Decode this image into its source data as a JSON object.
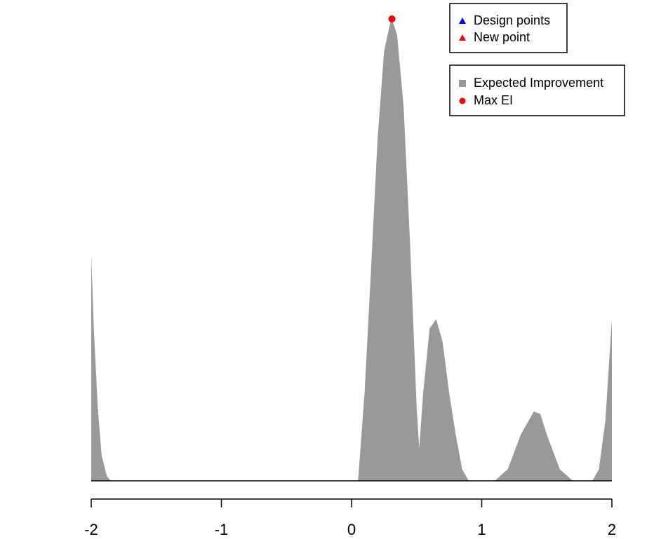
{
  "chart_data": {
    "type": "area",
    "xlim": [
      -2,
      2
    ],
    "xticks": [
      -2,
      -1,
      0,
      1,
      2
    ],
    "ylim": [
      0,
      1
    ],
    "series": [
      {
        "name": "Expected Improvement",
        "color": "#999999",
        "marker": "square",
        "x": [
          -2,
          -1.98,
          -1.95,
          -1.92,
          -1.88,
          -1.85,
          0.05,
          0.1,
          0.15,
          0.2,
          0.25,
          0.3,
          0.31,
          0.35,
          0.4,
          0.45,
          0.5,
          0.52,
          0.55,
          0.6,
          0.65,
          0.7,
          0.75,
          0.8,
          0.85,
          0.9,
          1.1,
          1.2,
          1.3,
          1.4,
          1.45,
          1.5,
          1.6,
          1.7,
          1.85,
          1.9,
          1.95,
          2
        ],
        "values": [
          0.49,
          0.33,
          0.16,
          0.055,
          0.01,
          0,
          0,
          0.19,
          0.46,
          0.74,
          0.93,
          0.995,
          1,
          0.965,
          0.81,
          0.51,
          0.16,
          0.07,
          0.19,
          0.33,
          0.35,
          0.3,
          0.19,
          0.1,
          0.025,
          0,
          0,
          0.025,
          0.1,
          0.15,
          0.145,
          0.1,
          0.025,
          0,
          0,
          0.025,
          0.13,
          0.35
        ]
      },
      {
        "name": "Max EI",
        "color": "#ff0000",
        "marker": "circle",
        "x": [
          0.31
        ],
        "values": [
          1
        ]
      }
    ],
    "point_legend": [
      {
        "name": "Design points",
        "color": "#0000ff"
      },
      {
        "name": "New point",
        "color": "#ff0000"
      }
    ]
  }
}
